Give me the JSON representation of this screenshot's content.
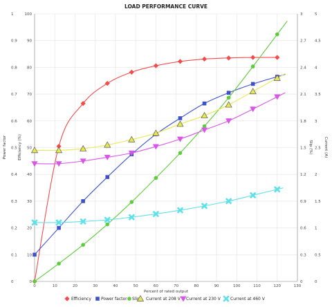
{
  "chart_data": {
    "type": "line",
    "title": "LOAD PERFORMANCE CURVE",
    "xlabel": "Percent of rated output",
    "ylabel_left_outer": "Power factor",
    "ylabel_left_inner": "Efficiency (%)",
    "ylabel_right_inner": "Slip (%)",
    "ylabel_right_outer": "Current (A)",
    "xlim": [
      0,
      130
    ],
    "x_ticks": [
      "0",
      "10",
      "20",
      "30",
      "40",
      "50",
      "60",
      "70",
      "80",
      "90",
      "100",
      "110",
      "120",
      "130"
    ],
    "axes": {
      "power_factor": {
        "range": [
          0,
          1
        ],
        "ticks": [
          "0",
          "0.1",
          "0.2",
          "0.3",
          "0.4",
          "0.5",
          "0.6",
          "0.7",
          "0.8",
          "0.9",
          "1"
        ]
      },
      "efficiency": {
        "range": [
          0,
          100
        ],
        "ticks": [
          "0",
          "10",
          "20",
          "30",
          "40",
          "50",
          "60",
          "70",
          "80",
          "90",
          "100"
        ]
      },
      "slip": {
        "range": [
          0,
          3
        ],
        "ticks": [
          "0",
          "0.3",
          "0.6",
          "0.9",
          "1.2",
          "1.5",
          "1.8",
          "2.1",
          "2.4",
          "2.7",
          "3"
        ]
      },
      "current": {
        "range": [
          0,
          5
        ],
        "ticks": [
          "0",
          "0.5",
          "1",
          "1.5",
          "2",
          "2.5",
          "3",
          "3.5",
          "4",
          "4.5",
          "5"
        ]
      }
    },
    "x_points": [
      0,
      12,
      24,
      36,
      48,
      60,
      72,
      84,
      96,
      108,
      120
    ],
    "series": [
      {
        "name": "Efficiency",
        "axis": "efficiency",
        "color": "#f24b4b",
        "marker": "diamond",
        "values": [
          0,
          50.5,
          66.5,
          74,
          78.2,
          80.6,
          82.2,
          83.1,
          83.5,
          83.7,
          83.7
        ]
      },
      {
        "name": "Power factor",
        "axis": "power_factor",
        "color": "#3d52c9",
        "marker": "square",
        "values": [
          0.1,
          0.2,
          0.3,
          0.39,
          0.475,
          0.55,
          0.61,
          0.665,
          0.705,
          0.738,
          0.765
        ]
      },
      {
        "name": "Slip",
        "axis": "slip",
        "color": "#5ecb3a",
        "marker": "circle",
        "values": [
          0,
          0.2,
          0.41,
          0.64,
          0.89,
          1.16,
          1.44,
          1.74,
          2.06,
          2.41,
          2.77
        ]
      },
      {
        "name": "Current at 208 V",
        "axis": "current",
        "color": "#e8e854",
        "marker": "triangle-up",
        "values": [
          2.45,
          2.45,
          2.48,
          2.55,
          2.65,
          2.77,
          2.94,
          3.1,
          3.3,
          3.55,
          3.8
        ]
      },
      {
        "name": "Current at 230 V",
        "axis": "current",
        "color": "#d756e8",
        "marker": "triangle-down",
        "values": [
          2.2,
          2.2,
          2.25,
          2.32,
          2.4,
          2.52,
          2.66,
          2.83,
          3.0,
          3.22,
          3.45
        ]
      },
      {
        "name": "Current at 460 V",
        "axis": "current",
        "color": "#5ee0e8",
        "marker": "x",
        "values": [
          1.1,
          1.1,
          1.12,
          1.15,
          1.2,
          1.26,
          1.33,
          1.41,
          1.5,
          1.61,
          1.72
        ]
      }
    ],
    "grid": true,
    "legend_position": "bottom"
  }
}
